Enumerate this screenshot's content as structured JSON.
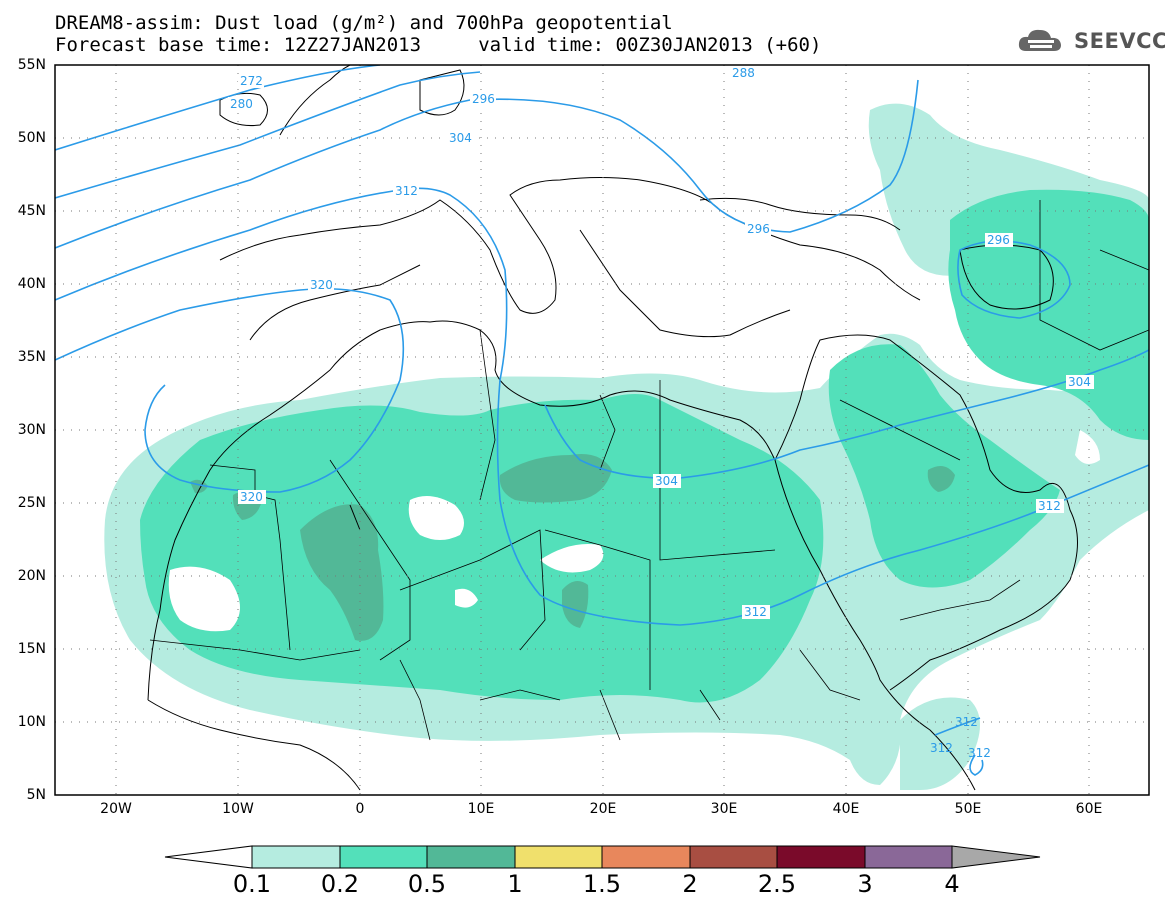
{
  "title": {
    "line1": "DREAM8-assim: Dust load (g/m²) and 700hPa geopotential",
    "line2": "Forecast base time: 12Z27JAN2013     valid time: 00Z30JAN2013 (+60)"
  },
  "logo": {
    "text": "SEEVCCC",
    "icon": "cloud-logo-icon"
  },
  "axes": {
    "lat_labels": [
      "55N",
      "50N",
      "45N",
      "40N",
      "35N",
      "30N",
      "25N",
      "20N",
      "15N",
      "10N",
      "5N"
    ],
    "lon_labels": [
      "20W",
      "10W",
      "0",
      "10E",
      "20E",
      "30E",
      "40E",
      "50E",
      "60E"
    ],
    "lon_range": [
      -25,
      65
    ],
    "lat_range": [
      5,
      55
    ]
  },
  "contours": {
    "labels": [
      "272",
      "280",
      "288",
      "296",
      "304",
      "312",
      "320",
      "296",
      "304",
      "312",
      "320",
      "304",
      "312",
      "296",
      "312",
      "312",
      "312"
    ]
  },
  "colorbar": {
    "levels": [
      "0.1",
      "0.2",
      "0.5",
      "1",
      "1.5",
      "2",
      "2.5",
      "3",
      "4"
    ],
    "colors": [
      "#b5ece0",
      "#53e0ba",
      "#52b897",
      "#f0e06c",
      "#e8875c",
      "#a84e42",
      "#7a0a2a",
      "#8a6898",
      "#a0a0a0"
    ],
    "under_color": "#ffffff",
    "over_color": "#a8a8a8"
  }
}
